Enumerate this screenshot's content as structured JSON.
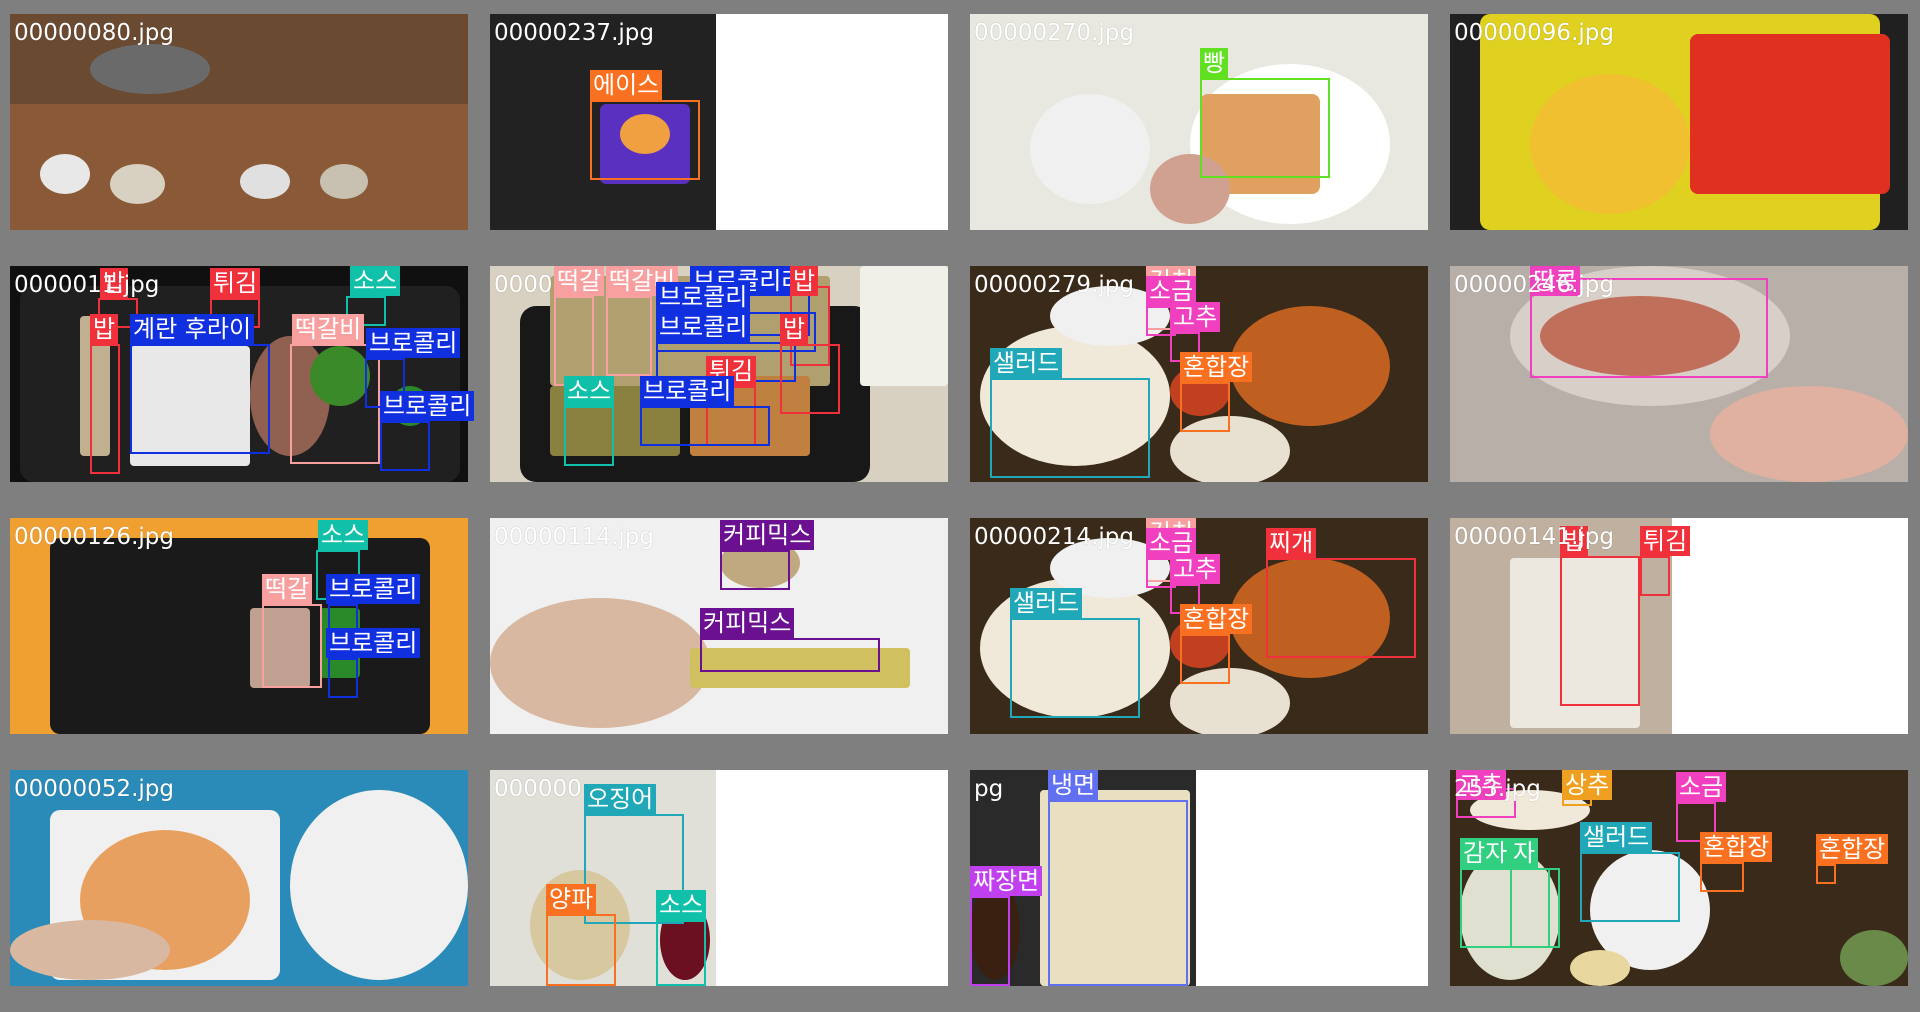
{
  "colors": {
    "rice": "#f0303a",
    "fried": "#f0303a",
    "sauce": "#10c0a8",
    "egg": "#1030e0",
    "broccoli": "#1030e0",
    "tteokgalbi": "#f8a0a0",
    "ace": "#f87020",
    "bread": "#60e020",
    "peanut": "#f040c0",
    "kimchi": "#f8a0a0",
    "salt": "#f040c0",
    "pepper": "#f040c0",
    "mixed": "#f87020",
    "salad": "#20a8b8",
    "jjigae": "#f0303a",
    "coffee": "#6a1090",
    "squid": "#20a8b8",
    "onion": "#f87020",
    "naengmyeon": "#6070f0",
    "jjajang": "#c040f0",
    "lettuce": "#f0a020",
    "potato": "#30d080"
  },
  "tiles": [
    {
      "filename": "00000080.jpg",
      "labels": []
    },
    {
      "filename": "00000237.jpg",
      "labels": [
        {
          "text": "에이스",
          "color_key": "ace"
        }
      ]
    },
    {
      "filename": "00000270.jpg",
      "labels": [
        {
          "text": "빵",
          "color_key": "bread"
        }
      ]
    },
    {
      "filename": "00000096.jpg",
      "labels": []
    },
    {
      "filename": "0000011.jpg",
      "labels": [
        {
          "text": "밥",
          "color_key": "rice"
        },
        {
          "text": "튀김",
          "color_key": "fried"
        },
        {
          "text": "소스",
          "color_key": "sauce"
        },
        {
          "text": "밥",
          "color_key": "rice"
        },
        {
          "text": "계란 후라이",
          "color_key": "egg"
        },
        {
          "text": "떡갈비",
          "color_key": "tteokgalbi"
        },
        {
          "text": "브로콜리",
          "color_key": "broccoli"
        },
        {
          "text": "브로콜리",
          "color_key": "broccoli"
        }
      ]
    },
    {
      "filename": "0000",
      "labels": [
        {
          "text": "떡갈",
          "color_key": "tteokgalbi"
        },
        {
          "text": "떡갈비",
          "color_key": "tteokgalbi"
        },
        {
          "text": "브로콜리라",
          "color_key": "broccoli"
        },
        {
          "text": "밥",
          "color_key": "rice"
        },
        {
          "text": "브로콜리",
          "color_key": "broccoli"
        },
        {
          "text": "브로콜리",
          "color_key": "broccoli"
        },
        {
          "text": "밥",
          "color_key": "rice"
        },
        {
          "text": "튀김",
          "color_key": "fried"
        },
        {
          "text": "소스",
          "color_key": "sauce"
        },
        {
          "text": "브로콜리",
          "color_key": "broccoli"
        }
      ]
    },
    {
      "filename": "00000279.jpg",
      "labels": [
        {
          "text": "김치",
          "color_key": "kimchi"
        },
        {
          "text": "소금",
          "color_key": "salt"
        },
        {
          "text": "고추",
          "color_key": "pepper"
        },
        {
          "text": "샐러드",
          "color_key": "salad"
        },
        {
          "text": "혼합장",
          "color_key": "mixed"
        }
      ]
    },
    {
      "filename": "00000246.jpg",
      "labels": [
        {
          "text": "땅콩",
          "color_key": "peanut"
        }
      ]
    },
    {
      "filename": "00000126.jpg",
      "labels": [
        {
          "text": "소스",
          "color_key": "sauce"
        },
        {
          "text": "떡갈",
          "color_key": "tteokgalbi"
        },
        {
          "text": "브로콜리",
          "color_key": "broccoli"
        },
        {
          "text": "브로콜리",
          "color_key": "broccoli"
        }
      ]
    },
    {
      "filename": "00000114.jpg",
      "labels": [
        {
          "text": "커피믹스",
          "color_key": "coffee"
        },
        {
          "text": "커피믹스",
          "color_key": "coffee"
        }
      ]
    },
    {
      "filename": "00000214.jpg",
      "labels": [
        {
          "text": "김치",
          "color_key": "kimchi"
        },
        {
          "text": "소금",
          "color_key": "salt"
        },
        {
          "text": "고추",
          "color_key": "pepper"
        },
        {
          "text": "찌개",
          "color_key": "jjigae"
        },
        {
          "text": "샐러드",
          "color_key": "salad"
        },
        {
          "text": "혼합장",
          "color_key": "mixed"
        }
      ]
    },
    {
      "filename": "00000141.jpg",
      "labels": [
        {
          "text": "밥",
          "color_key": "rice"
        },
        {
          "text": "튀김",
          "color_key": "fried"
        }
      ]
    },
    {
      "filename": "00000052.jpg",
      "labels": []
    },
    {
      "filename": "000000",
      "labels": [
        {
          "text": "오징어",
          "color_key": "squid"
        },
        {
          "text": "양파",
          "color_key": "onion"
        },
        {
          "text": "소스",
          "color_key": "sauce"
        }
      ]
    },
    {
      "filename": "pg",
      "labels": [
        {
          "text": "냉면",
          "color_key": "naengmyeon"
        },
        {
          "text": "짜장면",
          "color_key": "jjajang"
        }
      ]
    },
    {
      "filename": "253.jpg",
      "labels": [
        {
          "text": "고추",
          "color_key": "pepper"
        },
        {
          "text": "상추",
          "color_key": "lettuce"
        },
        {
          "text": "소금",
          "color_key": "salt"
        },
        {
          "text": "샐러드",
          "color_key": "salad"
        },
        {
          "text": "혼합장",
          "color_key": "mixed"
        },
        {
          "text": "혼합장",
          "color_key": "mixed"
        },
        {
          "text": "감자",
          "color_key": "potato"
        },
        {
          "text": "자",
          "color_key": "potato"
        }
      ]
    }
  ]
}
